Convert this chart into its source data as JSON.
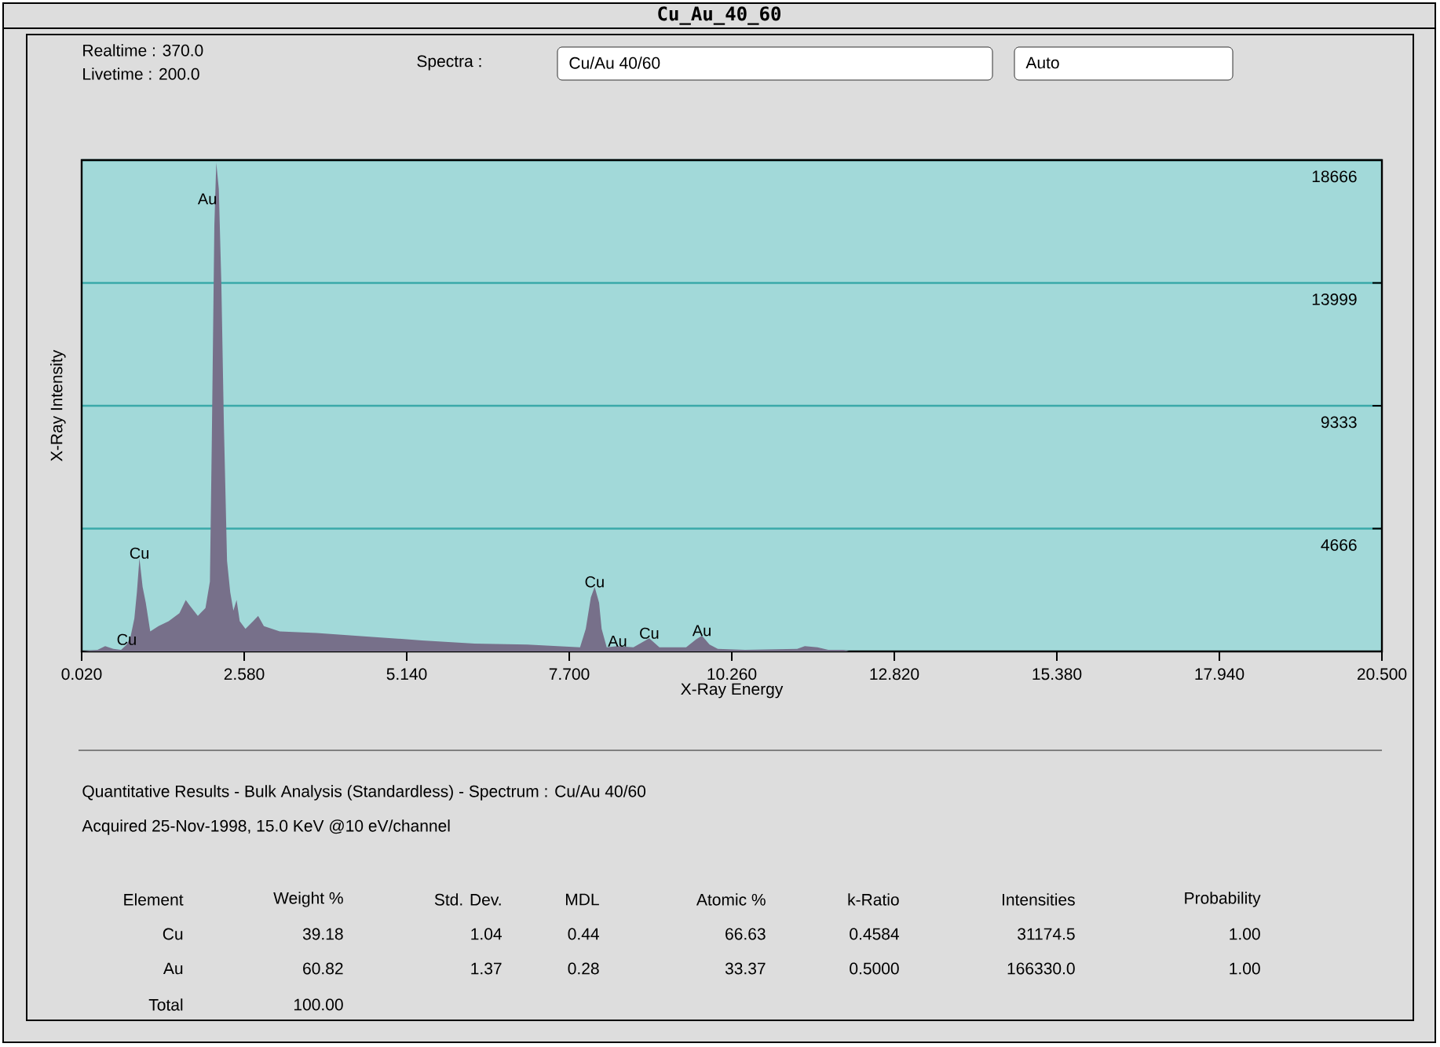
{
  "chart_data": {
    "type": "area",
    "title": "Cu_Au_40_60",
    "xlabel": "X-Ray Energy",
    "ylabel": "X-Ray Intensity",
    "x": [
      0.02,
      0.27,
      0.39,
      0.52,
      0.64,
      0.73,
      0.79,
      0.85,
      0.89,
      0.93,
      0.98,
      1.03,
      1.1,
      1.23,
      1.39,
      1.56,
      1.66,
      1.72,
      1.85,
      1.97,
      2.04,
      2.07,
      2.11,
      2.14,
      2.18,
      2.22,
      2.26,
      2.31,
      2.36,
      2.41,
      2.46,
      2.51,
      2.6,
      2.72,
      2.8,
      2.89,
      3.14,
      3.72,
      4.55,
      5.38,
      6.21,
      7.04,
      7.87,
      7.96,
      8.04,
      8.1,
      8.17,
      8.21,
      8.29,
      8.46,
      8.71,
      8.96,
      9.12,
      9.54,
      9.7,
      9.79,
      9.91,
      10.04,
      10.47,
      11.29,
      11.41,
      11.61,
      11.78,
      12.02,
      12.11,
      20.5
    ],
    "series": [
      {
        "color": "#77708a",
        "values": [
          0,
          60,
          200,
          100,
          60,
          260,
          560,
          1250,
          2250,
          3540,
          2450,
          1850,
          760,
          960,
          1150,
          1450,
          1950,
          1750,
          1350,
          1650,
          2650,
          8020,
          16180,
          18570,
          17570,
          13990,
          8620,
          3440,
          2250,
          1550,
          1950,
          1150,
          860,
          1150,
          1350,
          960,
          760,
          700,
          560,
          420,
          300,
          260,
          160,
          860,
          2050,
          2450,
          1850,
          860,
          160,
          200,
          160,
          500,
          160,
          160,
          460,
          600,
          260,
          100,
          60,
          100,
          200,
          160,
          60,
          60,
          0,
          0
        ]
      }
    ],
    "xlim": [
      0.02,
      20.5
    ],
    "xticks": [
      {
        "value": 0.02,
        "label": "0.020"
      },
      {
        "value": 2.58,
        "label": "2.580"
      },
      {
        "value": 5.14,
        "label": "5.140"
      },
      {
        "value": 7.7,
        "label": "7.700"
      },
      {
        "value": 10.26,
        "label": "10.260"
      },
      {
        "value": 12.82,
        "label": "12.820"
      },
      {
        "value": 15.38,
        "label": "15.380"
      },
      {
        "value": 17.94,
        "label": "17.940"
      },
      {
        "value": 20.5,
        "label": "20.500"
      }
    ],
    "ylim": [
      0,
      18666
    ],
    "yticks": [
      4666,
      9333,
      13999,
      18666
    ],
    "grid": "y",
    "annotations": [
      "Realtime : 370.0",
      "Livetime : 200.0",
      "Spectra :",
      "Cu/Au 40/60",
      "Auto",
      "Quantitative Results -  Bulk Analysis (Standardless) - Spectrum : Cu/Au 40/60",
      "Acquired 25-Nov-1998, 15.0 KeV @10 eV/channel",
      "Element",
      "Weight %",
      "Std. Dev.",
      "MDL",
      "Atomic %",
      "k-Ratio",
      "Intensities",
      "Probability",
      "Cu",
      "39.18",
      "1.04",
      "0.44",
      "66.63",
      "0.4584",
      "31174.5",
      "1.00",
      "Au",
      "60.82",
      "1.37",
      "0.28",
      "33.37",
      "0.5000",
      "166330.0",
      "1.00",
      "Total",
      "100.00",
      {
        "text": "Cu",
        "x": 0.73,
        "y": 260
      },
      {
        "text": "Cu",
        "x": 0.93,
        "y": 3540
      },
      {
        "text": "Au",
        "x": 2.0,
        "y": 17000
      },
      {
        "text": "Cu",
        "x": 8.1,
        "y": 2450
      },
      {
        "text": "Au",
        "x": 8.46,
        "y": 200
      },
      {
        "text": "Cu",
        "x": 8.96,
        "y": 500
      },
      {
        "text": "Au",
        "x": 9.79,
        "y": 600
      }
    ]
  }
}
